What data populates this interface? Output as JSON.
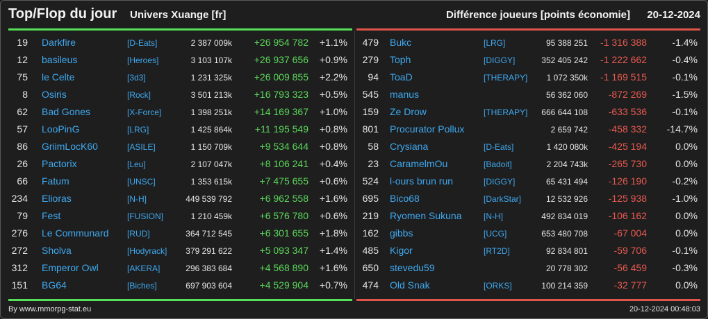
{
  "header": {
    "title": "Top/Flop du jour",
    "subtitle": "Univers Xuange [fr]",
    "metric": "Différence joueurs [points économie]",
    "date": "20-12-2024"
  },
  "colors": {
    "top_accent": "#55e055",
    "flop_accent": "#e0554a",
    "link": "#3fa9f0",
    "positive": "#5bd85b",
    "negative": "#e85a50",
    "background": "#1e1e1e"
  },
  "top": [
    {
      "rank": "19",
      "name": "Darkfire",
      "guild": "[D-Eats]",
      "points": "2 387 009k",
      "diff": "+26 954 782",
      "pct": "+1.1%"
    },
    {
      "rank": "12",
      "name": "basileus",
      "guild": "[Heroes]",
      "points": "3 103 107k",
      "diff": "+26 937 656",
      "pct": "+0.9%"
    },
    {
      "rank": "75",
      "name": "le Celte",
      "guild": "[3d3]",
      "points": "1 231 325k",
      "diff": "+26 009 855",
      "pct": "+2.2%"
    },
    {
      "rank": "8",
      "name": "Osiris",
      "guild": "[Rock]",
      "points": "3 501 213k",
      "diff": "+16 793 323",
      "pct": "+0.5%"
    },
    {
      "rank": "62",
      "name": "Bad Gones",
      "guild": "[X-Force]",
      "points": "1 398 251k",
      "diff": "+14 169 367",
      "pct": "+1.0%"
    },
    {
      "rank": "57",
      "name": "LooPinG",
      "guild": "[LRG]",
      "points": "1 425 864k",
      "diff": "+11 195 549",
      "pct": "+0.8%"
    },
    {
      "rank": "86",
      "name": "GriimLocK60",
      "guild": "[ASILE]",
      "points": "1 150 709k",
      "diff": "+9 534 644",
      "pct": "+0.8%"
    },
    {
      "rank": "26",
      "name": "Pactorix",
      "guild": "[Leu]",
      "points": "2 107 047k",
      "diff": "+8 106 241",
      "pct": "+0.4%"
    },
    {
      "rank": "66",
      "name": "Fatum",
      "guild": "[UNSC]",
      "points": "1 353 615k",
      "diff": "+7 475 655",
      "pct": "+0.6%"
    },
    {
      "rank": "234",
      "name": "Elioras",
      "guild": "[N-H]",
      "points": "449 539 792",
      "diff": "+6 962 558",
      "pct": "+1.6%"
    },
    {
      "rank": "79",
      "name": "Fest",
      "guild": "[FUSION]",
      "points": "1 210 459k",
      "diff": "+6 576 780",
      "pct": "+0.6%"
    },
    {
      "rank": "276",
      "name": "Le Communard",
      "guild": "[RUD]",
      "points": "364 712 545",
      "diff": "+6 301 655",
      "pct": "+1.8%"
    },
    {
      "rank": "272",
      "name": "Sholva",
      "guild": "[Hodyrack]",
      "points": "379 291 622",
      "diff": "+5 093 347",
      "pct": "+1.4%"
    },
    {
      "rank": "312",
      "name": "Emperor Owl",
      "guild": "[AKERA]",
      "points": "296 383 684",
      "diff": "+4 568 890",
      "pct": "+1.6%"
    },
    {
      "rank": "151",
      "name": "BG64",
      "guild": "[Biches]",
      "points": "697 903 604",
      "diff": "+4 529 904",
      "pct": "+0.7%"
    }
  ],
  "flop": [
    {
      "rank": "479",
      "name": "Bukc",
      "guild": "[LRG]",
      "points": "95 388 251",
      "diff": "-1 316 388",
      "pct": "-1.4%"
    },
    {
      "rank": "279",
      "name": "Toph",
      "guild": "[DIGGY]",
      "points": "352 405 242",
      "diff": "-1 222 662",
      "pct": "-0.4%"
    },
    {
      "rank": "94",
      "name": "ToaD",
      "guild": "[THERAPY]",
      "points": "1 072 350k",
      "diff": "-1 169 515",
      "pct": "-0.1%"
    },
    {
      "rank": "545",
      "name": "manus",
      "guild": "",
      "points": "56 362 060",
      "diff": "-872 269",
      "pct": "-1.5%"
    },
    {
      "rank": "159",
      "name": "Ze Drow",
      "guild": "[THERAPY]",
      "points": "666 644 108",
      "diff": "-633 536",
      "pct": "-0.1%"
    },
    {
      "rank": "801",
      "name": "Procurator Pollux",
      "guild": "",
      "points": "2 659 742",
      "diff": "-458 332",
      "pct": "-14.7%"
    },
    {
      "rank": "58",
      "name": "Crysiana",
      "guild": "[D-Eats]",
      "points": "1 420 080k",
      "diff": "-425 194",
      "pct": "0.0%"
    },
    {
      "rank": "23",
      "name": "CaramelmOu",
      "guild": "[Badoit]",
      "points": "2 204 743k",
      "diff": "-265 730",
      "pct": "0.0%"
    },
    {
      "rank": "524",
      "name": "l-ours brun run",
      "guild": "[DIGGY]",
      "points": "65 431 494",
      "diff": "-126 190",
      "pct": "-0.2%"
    },
    {
      "rank": "695",
      "name": "Bico68",
      "guild": "[DarkStar]",
      "points": "12 532 926",
      "diff": "-125 938",
      "pct": "-1.0%"
    },
    {
      "rank": "219",
      "name": "Ryomen Sukuna",
      "guild": "[N-H]",
      "points": "492 834 019",
      "diff": "-106 162",
      "pct": "0.0%"
    },
    {
      "rank": "162",
      "name": "gibbs",
      "guild": "[UCG]",
      "points": "653 480 708",
      "diff": "-67 004",
      "pct": "0.0%"
    },
    {
      "rank": "485",
      "name": "Kigor",
      "guild": "[RT2D]",
      "points": "92 834 801",
      "diff": "-59 706",
      "pct": "-0.1%"
    },
    {
      "rank": "650",
      "name": "stevedu59",
      "guild": "",
      "points": "20 778 302",
      "diff": "-56 459",
      "pct": "-0.3%"
    },
    {
      "rank": "474",
      "name": "Old Snak",
      "guild": "[ORKS]",
      "points": "100 214 359",
      "diff": "-32 777",
      "pct": "0.0%"
    }
  ],
  "footer": {
    "credit": "By www.mmorpg-stat.eu",
    "timestamp": "20-12-2024 00:48:03"
  }
}
